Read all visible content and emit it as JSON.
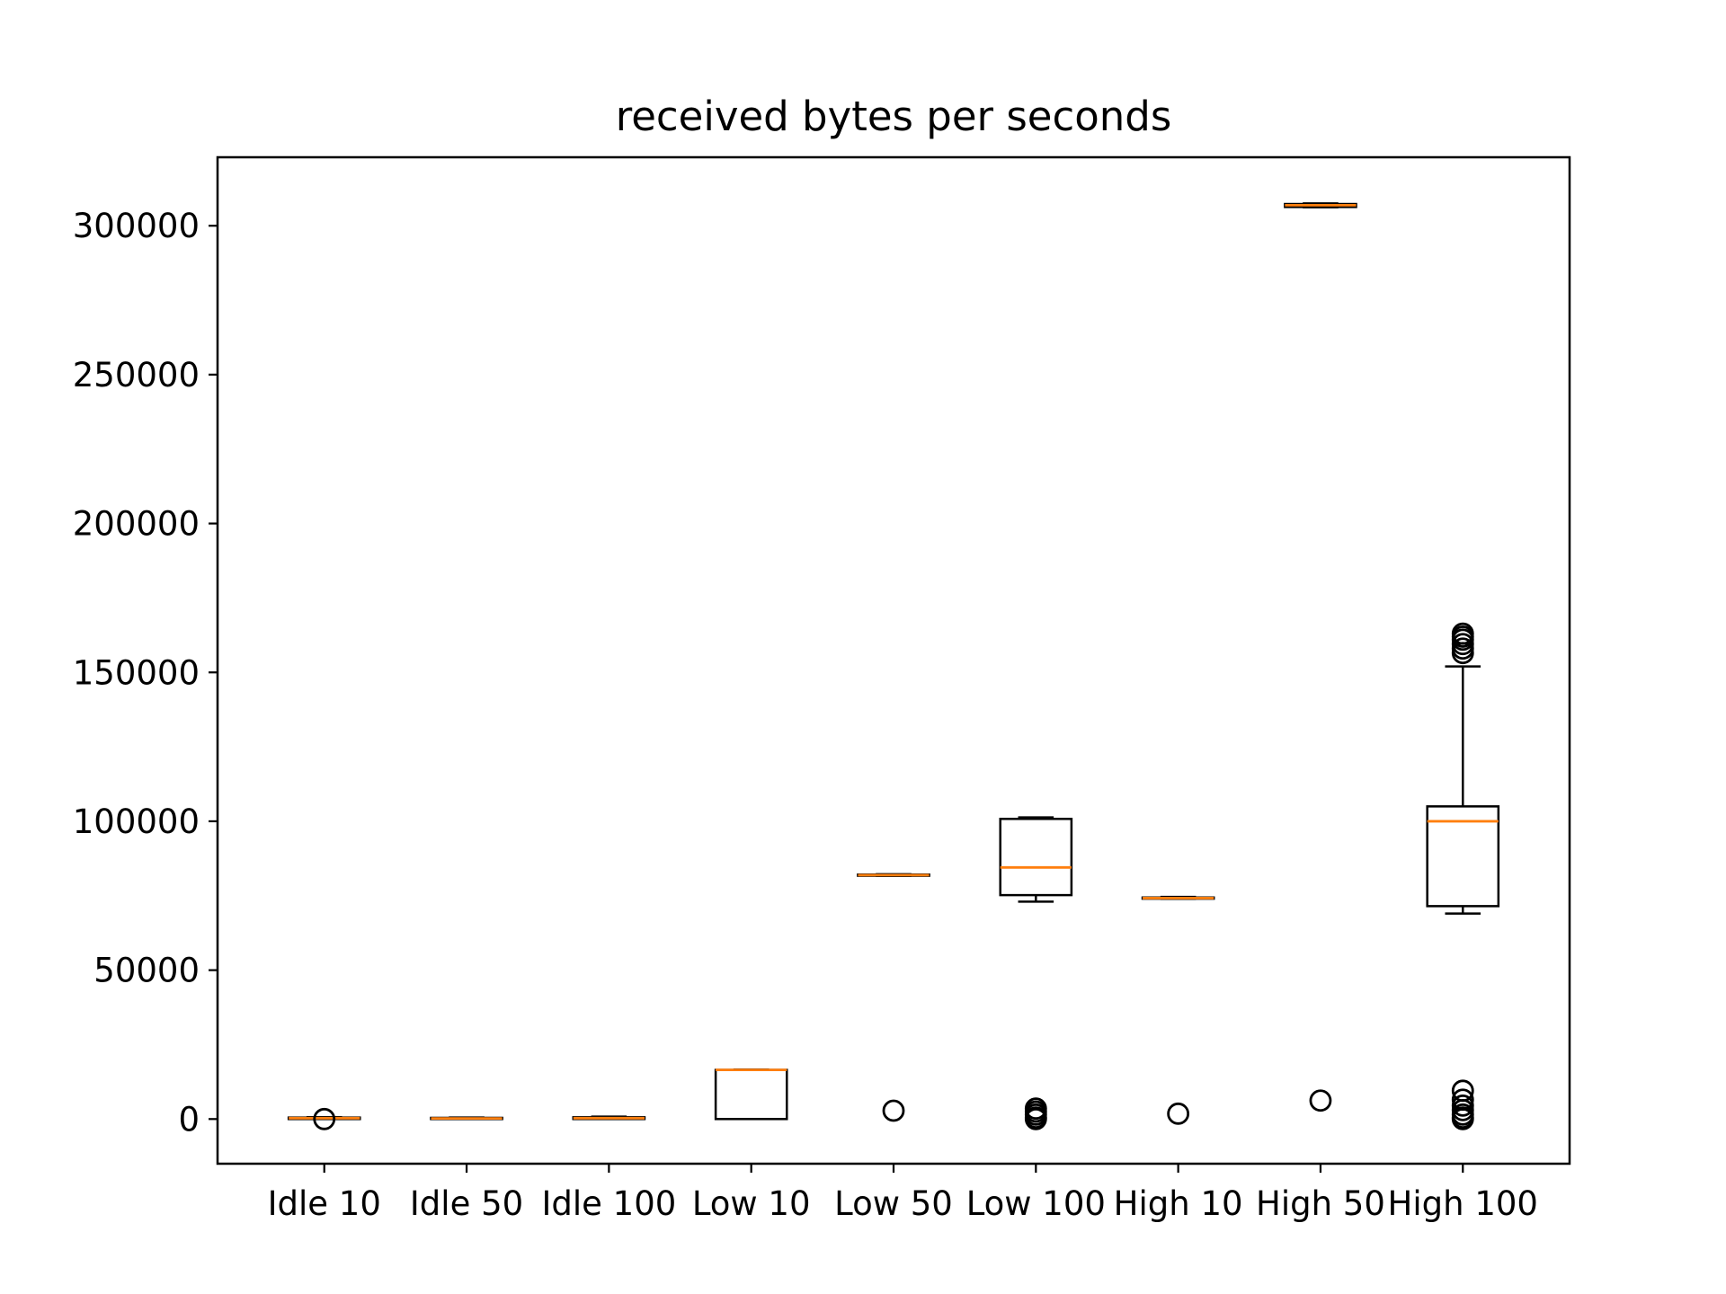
{
  "chart_data": {
    "type": "box",
    "title": "received bytes per seconds",
    "xlabel": "",
    "ylabel": "",
    "ylim": [
      -15000,
      323000
    ],
    "yticks": [
      0,
      50000,
      100000,
      150000,
      200000,
      250000,
      300000
    ],
    "ytick_labels": [
      "0",
      "50000",
      "100000",
      "150000",
      "200000",
      "250000",
      "300000"
    ],
    "grid": false,
    "categories": [
      "Idle 10",
      "Idle 50",
      "Idle 100",
      "Low 10",
      "Low 50",
      "Low 100",
      "High 10",
      "High 50",
      "High 100"
    ],
    "boxes": [
      {
        "name": "Idle 10",
        "whislo": 0,
        "q1": 0,
        "median": 300,
        "q3": 500,
        "whishi": 600,
        "fliers": [
          0
        ]
      },
      {
        "name": "Idle 50",
        "whislo": 0,
        "q1": 0,
        "median": 200,
        "q3": 400,
        "whishi": 500,
        "fliers": []
      },
      {
        "name": "Idle 100",
        "whislo": 0,
        "q1": 0,
        "median": 300,
        "q3": 600,
        "whishi": 800,
        "fliers": []
      },
      {
        "name": "Low 10",
        "whislo": 0,
        "q1": 0,
        "median": 16500,
        "q3": 16500,
        "whishi": 16600,
        "fliers": []
      },
      {
        "name": "Low 50",
        "whislo": 81700,
        "q1": 81700,
        "median": 81900,
        "q3": 82100,
        "whishi": 82200,
        "fliers": [
          2800
        ]
      },
      {
        "name": "Low 100",
        "whislo": 73000,
        "q1": 75200,
        "median": 84500,
        "q3": 100800,
        "whishi": 101300,
        "fliers": [
          3500,
          2500,
          1500,
          500,
          0
        ]
      },
      {
        "name": "High 10",
        "whislo": 74000,
        "q1": 74000,
        "median": 74200,
        "q3": 74400,
        "whishi": 74600,
        "fliers": [
          1800
        ]
      },
      {
        "name": "High 50",
        "whislo": 306200,
        "q1": 306300,
        "median": 306900,
        "q3": 307300,
        "whishi": 307500,
        "fliers": [
          6200
        ]
      },
      {
        "name": "High 100",
        "whislo": 69000,
        "q1": 71500,
        "median": 100000,
        "q3": 105000,
        "whishi": 152000,
        "fliers": [
          163000,
          162000,
          161000,
          159500,
          158000,
          156500,
          9500,
          6500,
          4500,
          3000,
          1500,
          500,
          0
        ]
      }
    ]
  },
  "colors": {
    "box": "#000000",
    "median": "#ff7f0e",
    "background": "#ffffff"
  }
}
